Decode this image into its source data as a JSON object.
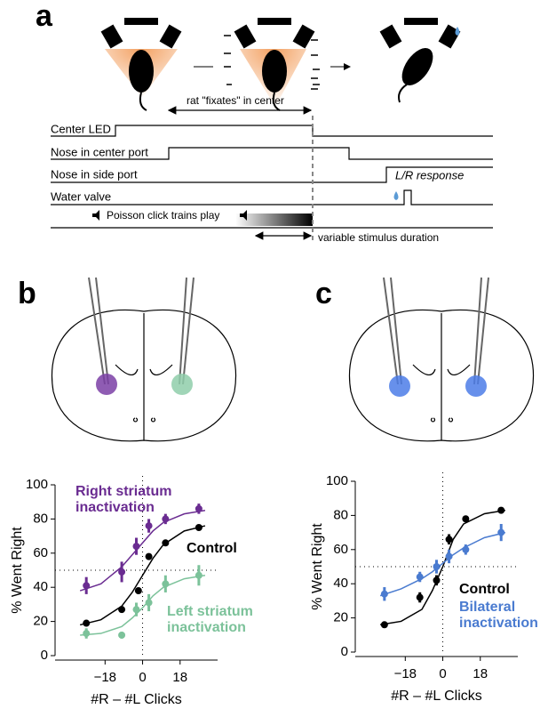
{
  "panel_labels": [
    "a",
    "b",
    "c"
  ],
  "panel_a": {
    "fixate": "rat \"fixates\" in center",
    "traces": [
      "Center LED",
      "Nose in center port",
      "Nose in side port",
      "Water valve"
    ],
    "clicks": "Poisson click trains play",
    "response": "L/R response",
    "duration": "variable stimulus duration"
  },
  "chart_data": [
    {
      "type": "scatter",
      "ylabel": "% Went Right",
      "xlabel": "#R – #L Clicks",
      "xlim": [
        -42,
        36
      ],
      "ylim": [
        0,
        100
      ],
      "xticks": [
        {
          "value": -18,
          "label": "−18"
        },
        0,
        18
      ],
      "yticks": [
        0,
        20,
        40,
        60,
        80,
        100
      ],
      "reference_lines": {
        "x": 0,
        "y": 50
      },
      "series": [
        {
          "label": [
            "Right striatum",
            "inactivation"
          ],
          "color": "#6a2c91",
          "x": [
            -27,
            -10,
            -3,
            3,
            11,
            27
          ],
          "values": [
            41,
            49,
            64,
            76,
            80,
            86
          ],
          "errors": [
            5,
            6,
            5,
            4,
            3,
            3
          ],
          "fit_x": [
            -30,
            -20,
            -10,
            -5,
            0,
            5,
            10,
            20,
            30
          ],
          "fit_values": [
            38,
            42,
            52,
            59,
            66,
            73,
            78,
            83,
            85
          ]
        },
        {
          "label": [
            "Control"
          ],
          "color": "#000000",
          "x": [
            -27,
            -10,
            -2,
            3,
            11,
            27
          ],
          "values": [
            19,
            27,
            38,
            58,
            66,
            75
          ],
          "errors": [
            1,
            1,
            1,
            1,
            1,
            1
          ],
          "fit_x": [
            -30,
            -20,
            -10,
            -5,
            0,
            5,
            10,
            20,
            30
          ],
          "fit_values": [
            18,
            21,
            29,
            37,
            47,
            57,
            65,
            73,
            76
          ]
        },
        {
          "label": [
            "Left striatum",
            "inactivation"
          ],
          "color": "#7cc29a",
          "x": [
            -27,
            -10,
            -3,
            3,
            11,
            27
          ],
          "values": [
            13,
            12,
            27,
            31,
            42,
            47
          ],
          "errors": [
            3,
            2,
            4,
            5,
            5,
            6
          ],
          "fit_x": [
            -30,
            -20,
            -10,
            -5,
            0,
            5,
            10,
            20,
            30
          ],
          "fit_values": [
            12,
            13,
            17,
            22,
            28,
            35,
            40,
            45,
            47
          ]
        }
      ]
    },
    {
      "type": "scatter",
      "ylabel": "% Went Right",
      "xlabel": "#R – #L Clicks",
      "xlim": [
        -42,
        36
      ],
      "ylim": [
        0,
        100
      ],
      "xticks": [
        {
          "value": -18,
          "label": "−18"
        },
        0,
        18
      ],
      "yticks": [
        0,
        20,
        40,
        60,
        80,
        100
      ],
      "reference_lines": {
        "x": 0,
        "y": 50
      },
      "series": [
        {
          "label": [
            "Control"
          ],
          "color": "#000000",
          "x": [
            -28,
            -11,
            -3,
            3,
            11,
            28
          ],
          "values": [
            16,
            32,
            42,
            66,
            78,
            83
          ],
          "errors": [
            1,
            3,
            3,
            3,
            1,
            1
          ],
          "fit_x": [
            -30,
            -20,
            -10,
            -5,
            0,
            5,
            10,
            20,
            30
          ],
          "fit_values": [
            16,
            18,
            25,
            36,
            50,
            66,
            75,
            81,
            83
          ]
        },
        {
          "label": [
            "Bilateral",
            "inactivation"
          ],
          "color": "#4a7bd0",
          "x": [
            -28,
            -11,
            -3,
            3,
            11,
            28
          ],
          "values": [
            34,
            44,
            50,
            56,
            60,
            70
          ],
          "errors": [
            4,
            3,
            4,
            4,
            3,
            5
          ],
          "fit_x": [
            -30,
            -20,
            -10,
            -5,
            0,
            5,
            10,
            20,
            30
          ],
          "fit_values": [
            33,
            37,
            43,
            47,
            52,
            57,
            61,
            67,
            70
          ]
        }
      ]
    }
  ]
}
